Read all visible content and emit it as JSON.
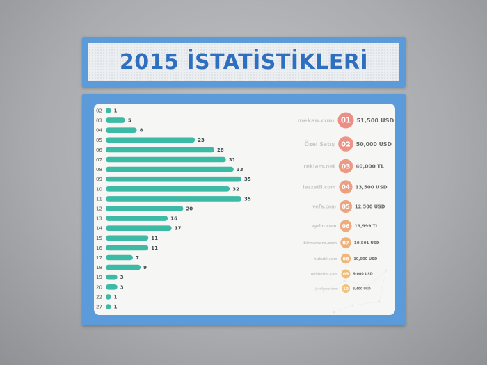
{
  "title": "2015 İSTATİSTİKLERİ",
  "colors": {
    "bar": "#3dbaa5",
    "frame": "#5b9bd9",
    "title": "#2f6fc0",
    "rank_top": "#eb8e86",
    "rank_bottom": "#f0c27a"
  },
  "chart_data": {
    "type": "bar",
    "orientation": "horizontal",
    "categories": [
      "02",
      "03",
      "04",
      "05",
      "06",
      "07",
      "08",
      "09",
      "10",
      "11",
      "12",
      "13",
      "14",
      "15",
      "16",
      "17",
      "18",
      "19",
      "20",
      "22",
      "27"
    ],
    "values": [
      1,
      5,
      8,
      23,
      28,
      31,
      33,
      35,
      32,
      35,
      20,
      16,
      17,
      11,
      11,
      7,
      9,
      3,
      3,
      1,
      1
    ],
    "title": "2015 İSTATİSTİKLERİ",
    "xlabel": "",
    "ylabel": "",
    "xlim": [
      0,
      35
    ]
  },
  "ranking": [
    {
      "rank": "01",
      "name": "mekan.com",
      "value": "51,500 USD"
    },
    {
      "rank": "02",
      "name": "Özel Satış",
      "value": "50,000 USD"
    },
    {
      "rank": "03",
      "name": "reklam.net",
      "value": "40,000 TL"
    },
    {
      "rank": "04",
      "name": "lezzetli.com",
      "value": "13,500 USD"
    },
    {
      "rank": "05",
      "name": "vefa.com",
      "value": "12,500 USD"
    },
    {
      "rank": "06",
      "name": "aydin.com",
      "value": "19,999 TL"
    },
    {
      "rank": "07",
      "name": "birnumara.com",
      "value": "10,501 USD"
    },
    {
      "rank": "08",
      "name": "hukuki.com",
      "value": "10,000 USD"
    },
    {
      "rank": "09",
      "name": "nehberim.com",
      "value": "9,000 USD"
    },
    {
      "rank": "10",
      "name": "jivekoop.com",
      "value": "8,400 USD"
    }
  ]
}
